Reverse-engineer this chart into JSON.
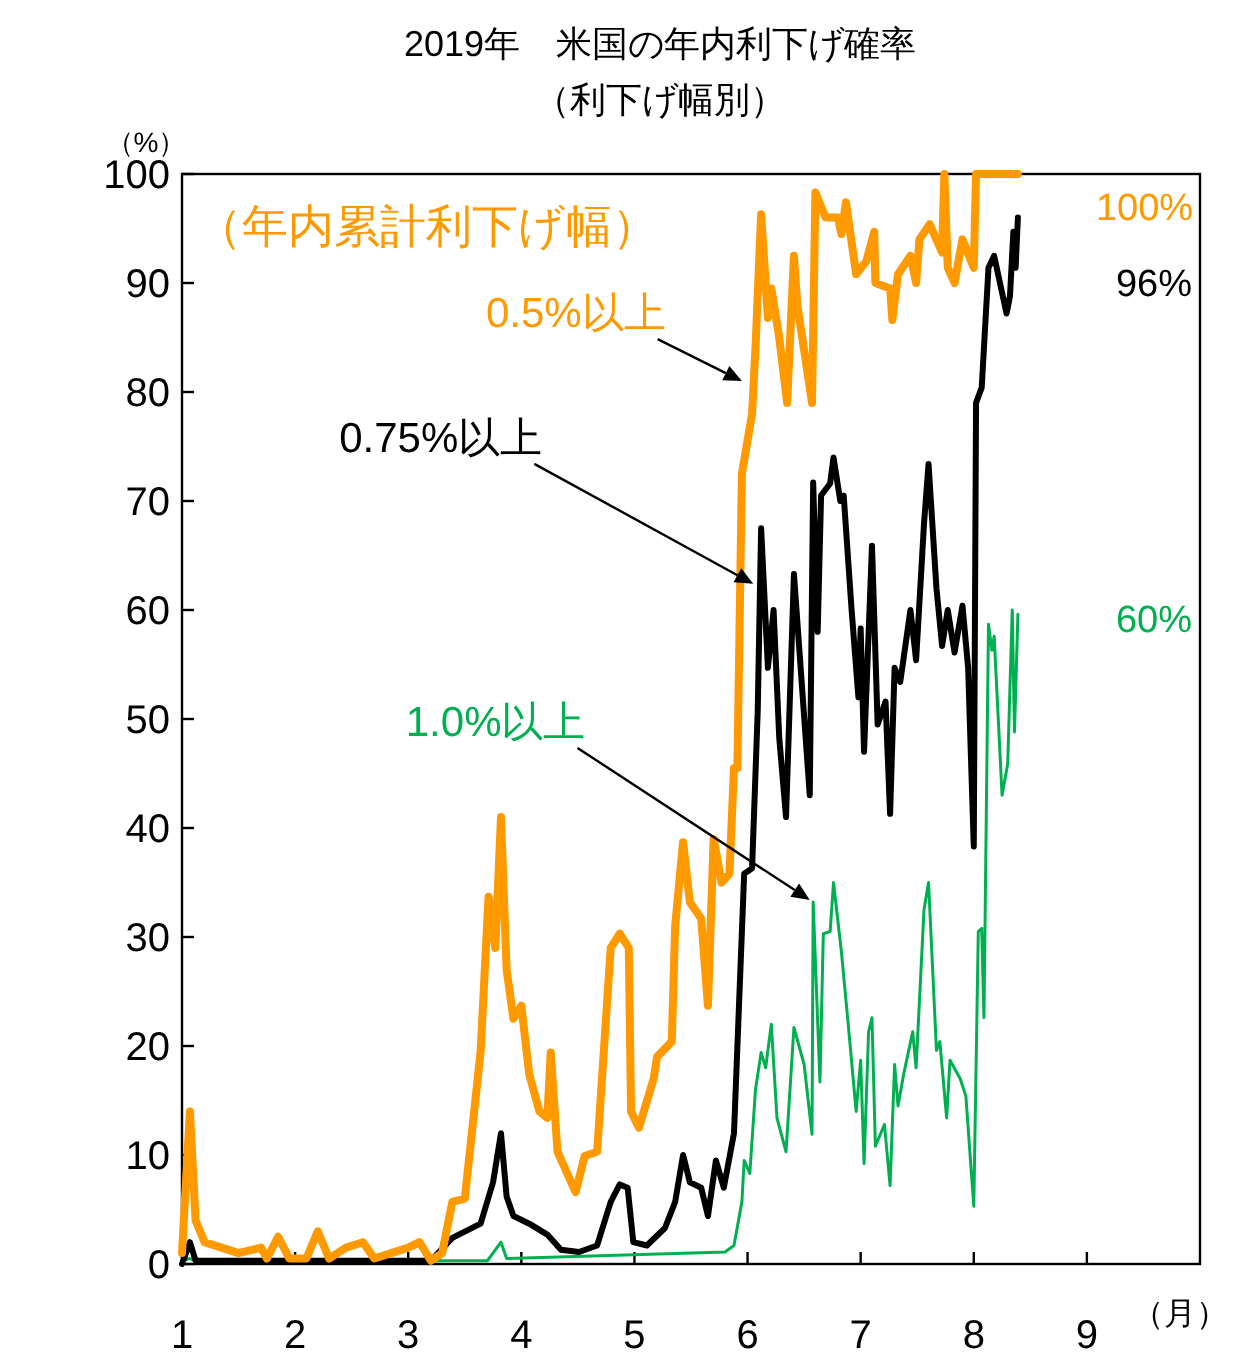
{
  "chart_data": {
    "type": "line",
    "title": "2019年　米国の年内利下げ確率",
    "subtitle": "（利下げ幅別）",
    "xlabel": "（月）",
    "ylabel": "（%）",
    "xlim": [
      1,
      10
    ],
    "xticks": [
      1,
      2,
      3,
      4,
      5,
      6,
      7,
      8,
      9
    ],
    "ylim": [
      0,
      100
    ],
    "yticks": [
      0,
      10,
      20,
      30,
      40,
      50,
      60,
      70,
      80,
      90,
      100
    ],
    "series": [
      {
        "color": "#ff9900",
        "x": [
          1.0,
          1.07,
          1.12,
          1.2,
          1.35,
          1.5,
          1.7,
          1.75,
          1.85,
          1.95,
          2.1,
          2.2,
          2.3,
          2.45,
          2.6,
          2.7,
          2.85,
          3.0,
          3.1,
          3.2,
          3.3,
          3.39,
          3.5,
          3.64,
          3.71,
          3.77,
          3.82,
          3.87,
          3.93,
          4.0,
          4.07,
          4.16,
          4.23,
          4.26,
          4.32,
          4.48,
          4.56,
          4.67,
          4.79,
          4.87,
          4.95,
          4.97,
          5.04,
          5.17,
          5.2,
          5.33,
          5.36,
          5.43,
          5.49,
          5.59,
          5.65,
          5.7,
          5.77,
          5.84,
          5.88,
          5.91,
          5.95,
          6.04,
          6.07,
          6.12,
          6.18,
          6.21,
          6.28,
          6.35,
          6.41,
          6.44,
          6.57,
          6.6,
          6.69,
          6.8,
          6.83,
          6.87,
          6.96,
          7.05,
          7.12,
          7.13,
          7.26,
          7.28,
          7.33,
          7.44,
          7.49,
          7.52,
          7.61,
          7.72,
          7.74,
          7.77,
          7.83,
          7.9,
          8.0,
          8.02,
          8.09,
          8.39
        ],
        "values": [
          1,
          14,
          4,
          2,
          1.5,
          1,
          1.5,
          0.5,
          2.5,
          0.5,
          0.5,
          3,
          0.5,
          1.5,
          2,
          0.5,
          1,
          1.5,
          2,
          0.3,
          1,
          5.7,
          6,
          19.5,
          33.7,
          29,
          41,
          27,
          22.5,
          23.7,
          17.4,
          14,
          13.4,
          19.4,
          10.3,
          6.6,
          9.9,
          10.3,
          29,
          30.3,
          29,
          14,
          12.5,
          17,
          19,
          20.4,
          31,
          38.7,
          33.2,
          31.7,
          23.7,
          39,
          35,
          35.8,
          45.5,
          45.5,
          72.5,
          78,
          84,
          96.3,
          86.8,
          89.5,
          85,
          79,
          92.5,
          88,
          79,
          98.3,
          96,
          96,
          94.5,
          97.4,
          90.8,
          92,
          94.7,
          90,
          89.5,
          86.6,
          90.8,
          92.5,
          90,
          94,
          95.4,
          92.8,
          100,
          91.4,
          90,
          94,
          91.4,
          100,
          100,
          100
        ]
      },
      {
        "color": "#000000",
        "x": [
          1.0,
          1.07,
          1.12,
          3.2,
          3.39,
          3.64,
          3.75,
          3.82,
          3.87,
          3.93,
          4.07,
          4.23,
          4.35,
          4.51,
          4.67,
          4.79,
          4.87,
          4.94,
          4.99,
          5.11,
          5.27,
          5.36,
          5.43,
          5.49,
          5.59,
          5.65,
          5.72,
          5.79,
          5.88,
          5.97,
          6.04,
          6.09,
          6.12,
          6.18,
          6.23,
          6.28,
          6.34,
          6.41,
          6.55,
          6.58,
          6.62,
          6.65,
          6.73,
          6.76,
          6.82,
          6.85,
          6.92,
          6.98,
          7.0,
          7.03,
          7.1,
          7.15,
          7.22,
          7.26,
          7.3,
          7.35,
          7.44,
          7.49,
          7.56,
          7.6,
          7.67,
          7.72,
          7.77,
          7.83,
          7.9,
          7.95,
          8.0,
          8.02,
          8.07,
          8.13,
          8.18,
          8.29,
          8.32,
          8.35,
          8.37,
          8.39
        ],
        "values": [
          0,
          2,
          0.3,
          0.3,
          2.4,
          3.7,
          7.5,
          12,
          6.2,
          4.4,
          3.7,
          2.7,
          1.3,
          1.1,
          1.7,
          5.7,
          7.3,
          7,
          2,
          1.7,
          3.3,
          5.7,
          10,
          7.5,
          7,
          4.4,
          9.5,
          7,
          12,
          35.8,
          36.3,
          50.8,
          67.5,
          54.7,
          60,
          48.3,
          41,
          63.3,
          43,
          71.7,
          58,
          70.5,
          71.6,
          74,
          70,
          70.5,
          60,
          52,
          58.3,
          47,
          65.9,
          49.5,
          51.6,
          41.3,
          54.7,
          53.4,
          60,
          55.4,
          67.9,
          73.4,
          62,
          56.7,
          60,
          56.1,
          60.4,
          54.7,
          38.3,
          79,
          80.4,
          91.4,
          92.5,
          87.2,
          88.8,
          94.7,
          91.4,
          96
        ]
      },
      {
        "color": "#00b050",
        "x": [
          1.0,
          1.07,
          1.12,
          3.7,
          3.82,
          3.87,
          5.8,
          5.88,
          5.95,
          5.97,
          6.02,
          6.07,
          6.12,
          6.16,
          6.21,
          6.26,
          6.34,
          6.41,
          6.5,
          6.57,
          6.58,
          6.64,
          6.67,
          6.73,
          6.76,
          6.83,
          6.89,
          6.96,
          7.0,
          7.03,
          7.07,
          7.1,
          7.13,
          7.21,
          7.26,
          7.3,
          7.33,
          7.38,
          7.46,
          7.49,
          7.56,
          7.6,
          7.67,
          7.7,
          7.76,
          7.79,
          7.88,
          7.93,
          8.0,
          8.04,
          8.07,
          8.09,
          8.13,
          8.16,
          8.18,
          8.25,
          8.3,
          8.34,
          8.36,
          8.39
        ],
        "values": [
          0.3,
          0.5,
          0.3,
          0.3,
          2,
          0.5,
          1.1,
          1.7,
          5.7,
          9.5,
          8.3,
          16,
          19.4,
          18,
          22,
          13.4,
          10.3,
          21.7,
          18.3,
          11.9,
          33.2,
          16.7,
          30.3,
          30.5,
          35,
          28.6,
          22,
          14,
          18.7,
          9.2,
          21.3,
          22.6,
          10.8,
          12.8,
          7.2,
          18.3,
          14.5,
          17.4,
          21.3,
          18,
          32.5,
          35,
          19.6,
          20.4,
          13.4,
          18.7,
          17,
          15.4,
          5.3,
          30.5,
          30.8,
          22.6,
          58.7,
          56.3,
          57.6,
          43,
          45.9,
          60,
          48.8,
          59.6
        ]
      }
    ],
    "annotations": [
      "（年内累計利下げ幅）",
      {
        "text": "0.5%以上",
        "x": 5.95,
        "y": 81
      },
      {
        "text": "0.75%以上",
        "x": 6.05,
        "y": 62.4
      },
      {
        "text": "1.0%以上",
        "x": 6.55,
        "y": 33.4
      },
      {
        "text": "100%",
        "x": 8.39,
        "y": 100
      },
      {
        "text": "96%",
        "x": 8.39,
        "y": 96
      },
      {
        "text": "60%",
        "x": 8.39,
        "y": 59.6
      }
    ]
  }
}
